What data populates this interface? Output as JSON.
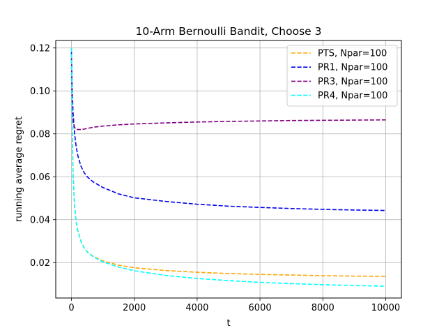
{
  "chart_data": {
    "type": "line",
    "title": "10-Arm Bernoulli Bandit, Choose 3",
    "xlabel": "t",
    "ylabel": "running average regret",
    "xlim": [
      -500,
      10500
    ],
    "ylim": [
      0.0035,
      0.1235
    ],
    "xticks": [
      0,
      2000,
      4000,
      6000,
      8000,
      10000
    ],
    "yticks": [
      0.02,
      0.04,
      0.06,
      0.08,
      0.1,
      0.12
    ],
    "xtick_labels": [
      "0",
      "2000",
      "4000",
      "6000",
      "8000",
      "10000"
    ],
    "ytick_labels": [
      "0.02",
      "0.04",
      "0.06",
      "0.08",
      "0.10",
      "0.12"
    ],
    "grid": true,
    "legend_position": "top-right",
    "series": [
      {
        "name": "PTS, Npar=100",
        "color": "#FFA500",
        "x": [
          0,
          10,
          25,
          50,
          100,
          150,
          200,
          300,
          400,
          500,
          700,
          1000,
          1500,
          2000,
          3000,
          4000,
          5000,
          6000,
          7000,
          8000,
          9000,
          10000
        ],
        "y": [
          0.12,
          0.104,
          0.082,
          0.062,
          0.046,
          0.039,
          0.035,
          0.03,
          0.027,
          0.025,
          0.0228,
          0.0208,
          0.0188,
          0.0176,
          0.0163,
          0.0155,
          0.0149,
          0.0145,
          0.0142,
          0.0139,
          0.0137,
          0.0136
        ]
      },
      {
        "name": "PR1, Npar=100",
        "color": "#0000EE",
        "x": [
          0,
          10,
          25,
          50,
          100,
          150,
          200,
          300,
          400,
          500,
          700,
          1000,
          1500,
          2000,
          3000,
          4000,
          5000,
          6000,
          7000,
          8000,
          9000,
          10000
        ],
        "y": [
          0.118,
          0.11,
          0.1,
          0.09,
          0.08,
          0.074,
          0.07,
          0.065,
          0.062,
          0.06,
          0.0575,
          0.055,
          0.052,
          0.0502,
          0.0485,
          0.0472,
          0.0463,
          0.0457,
          0.0452,
          0.0448,
          0.0445,
          0.0443
        ]
      },
      {
        "name": "PR3, Npar=100",
        "color": "#800080",
        "x": [
          0,
          10,
          25,
          50,
          100,
          150,
          200,
          300,
          400,
          500,
          700,
          1000,
          1500,
          2000,
          3000,
          4000,
          5000,
          6000,
          7000,
          8000,
          9000,
          10000
        ],
        "y": [
          0.115,
          0.1,
          0.09,
          0.086,
          0.083,
          0.082,
          0.082,
          0.082,
          0.0822,
          0.0825,
          0.0831,
          0.0836,
          0.0842,
          0.0846,
          0.0851,
          0.0855,
          0.0858,
          0.086,
          0.0862,
          0.0863,
          0.0864,
          0.0865
        ]
      },
      {
        "name": "PR4, Npar=100",
        "color": "#00FFFF",
        "x": [
          0,
          10,
          25,
          50,
          100,
          150,
          200,
          300,
          400,
          500,
          700,
          1000,
          1500,
          2000,
          3000,
          4000,
          5000,
          6000,
          7000,
          8000,
          9000,
          10000
        ],
        "y": [
          0.12,
          0.104,
          0.082,
          0.062,
          0.046,
          0.039,
          0.035,
          0.03,
          0.027,
          0.025,
          0.0226,
          0.0204,
          0.0179,
          0.0162,
          0.014,
          0.0126,
          0.0116,
          0.0108,
          0.0102,
          0.0097,
          0.0093,
          0.009
        ]
      }
    ]
  }
}
